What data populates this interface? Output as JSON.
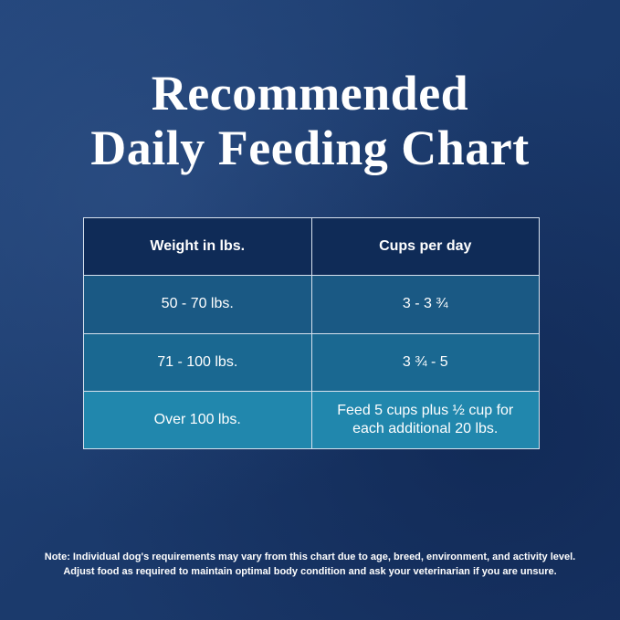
{
  "title_lines": [
    "Recommended",
    "Daily Feeding Chart"
  ],
  "table": {
    "header": [
      "Weight in lbs.",
      "Cups per day"
    ],
    "rows": [
      [
        "50 - 70 lbs.",
        "3 - 3 ¾"
      ],
      [
        "71 - 100 lbs.",
        "3 ¾ - 5"
      ],
      [
        "Over 100 lbs.",
        "Feed 5 cups plus ½ cup for each additional 20 lbs."
      ]
    ]
  },
  "note_lines": [
    "Note: Individual dog's requirements may vary from this chart due to age, breed, environment, and activity level.",
    "Adjust food as required to maintain optimal body condition and ask your veterinarian if you are unsure."
  ]
}
